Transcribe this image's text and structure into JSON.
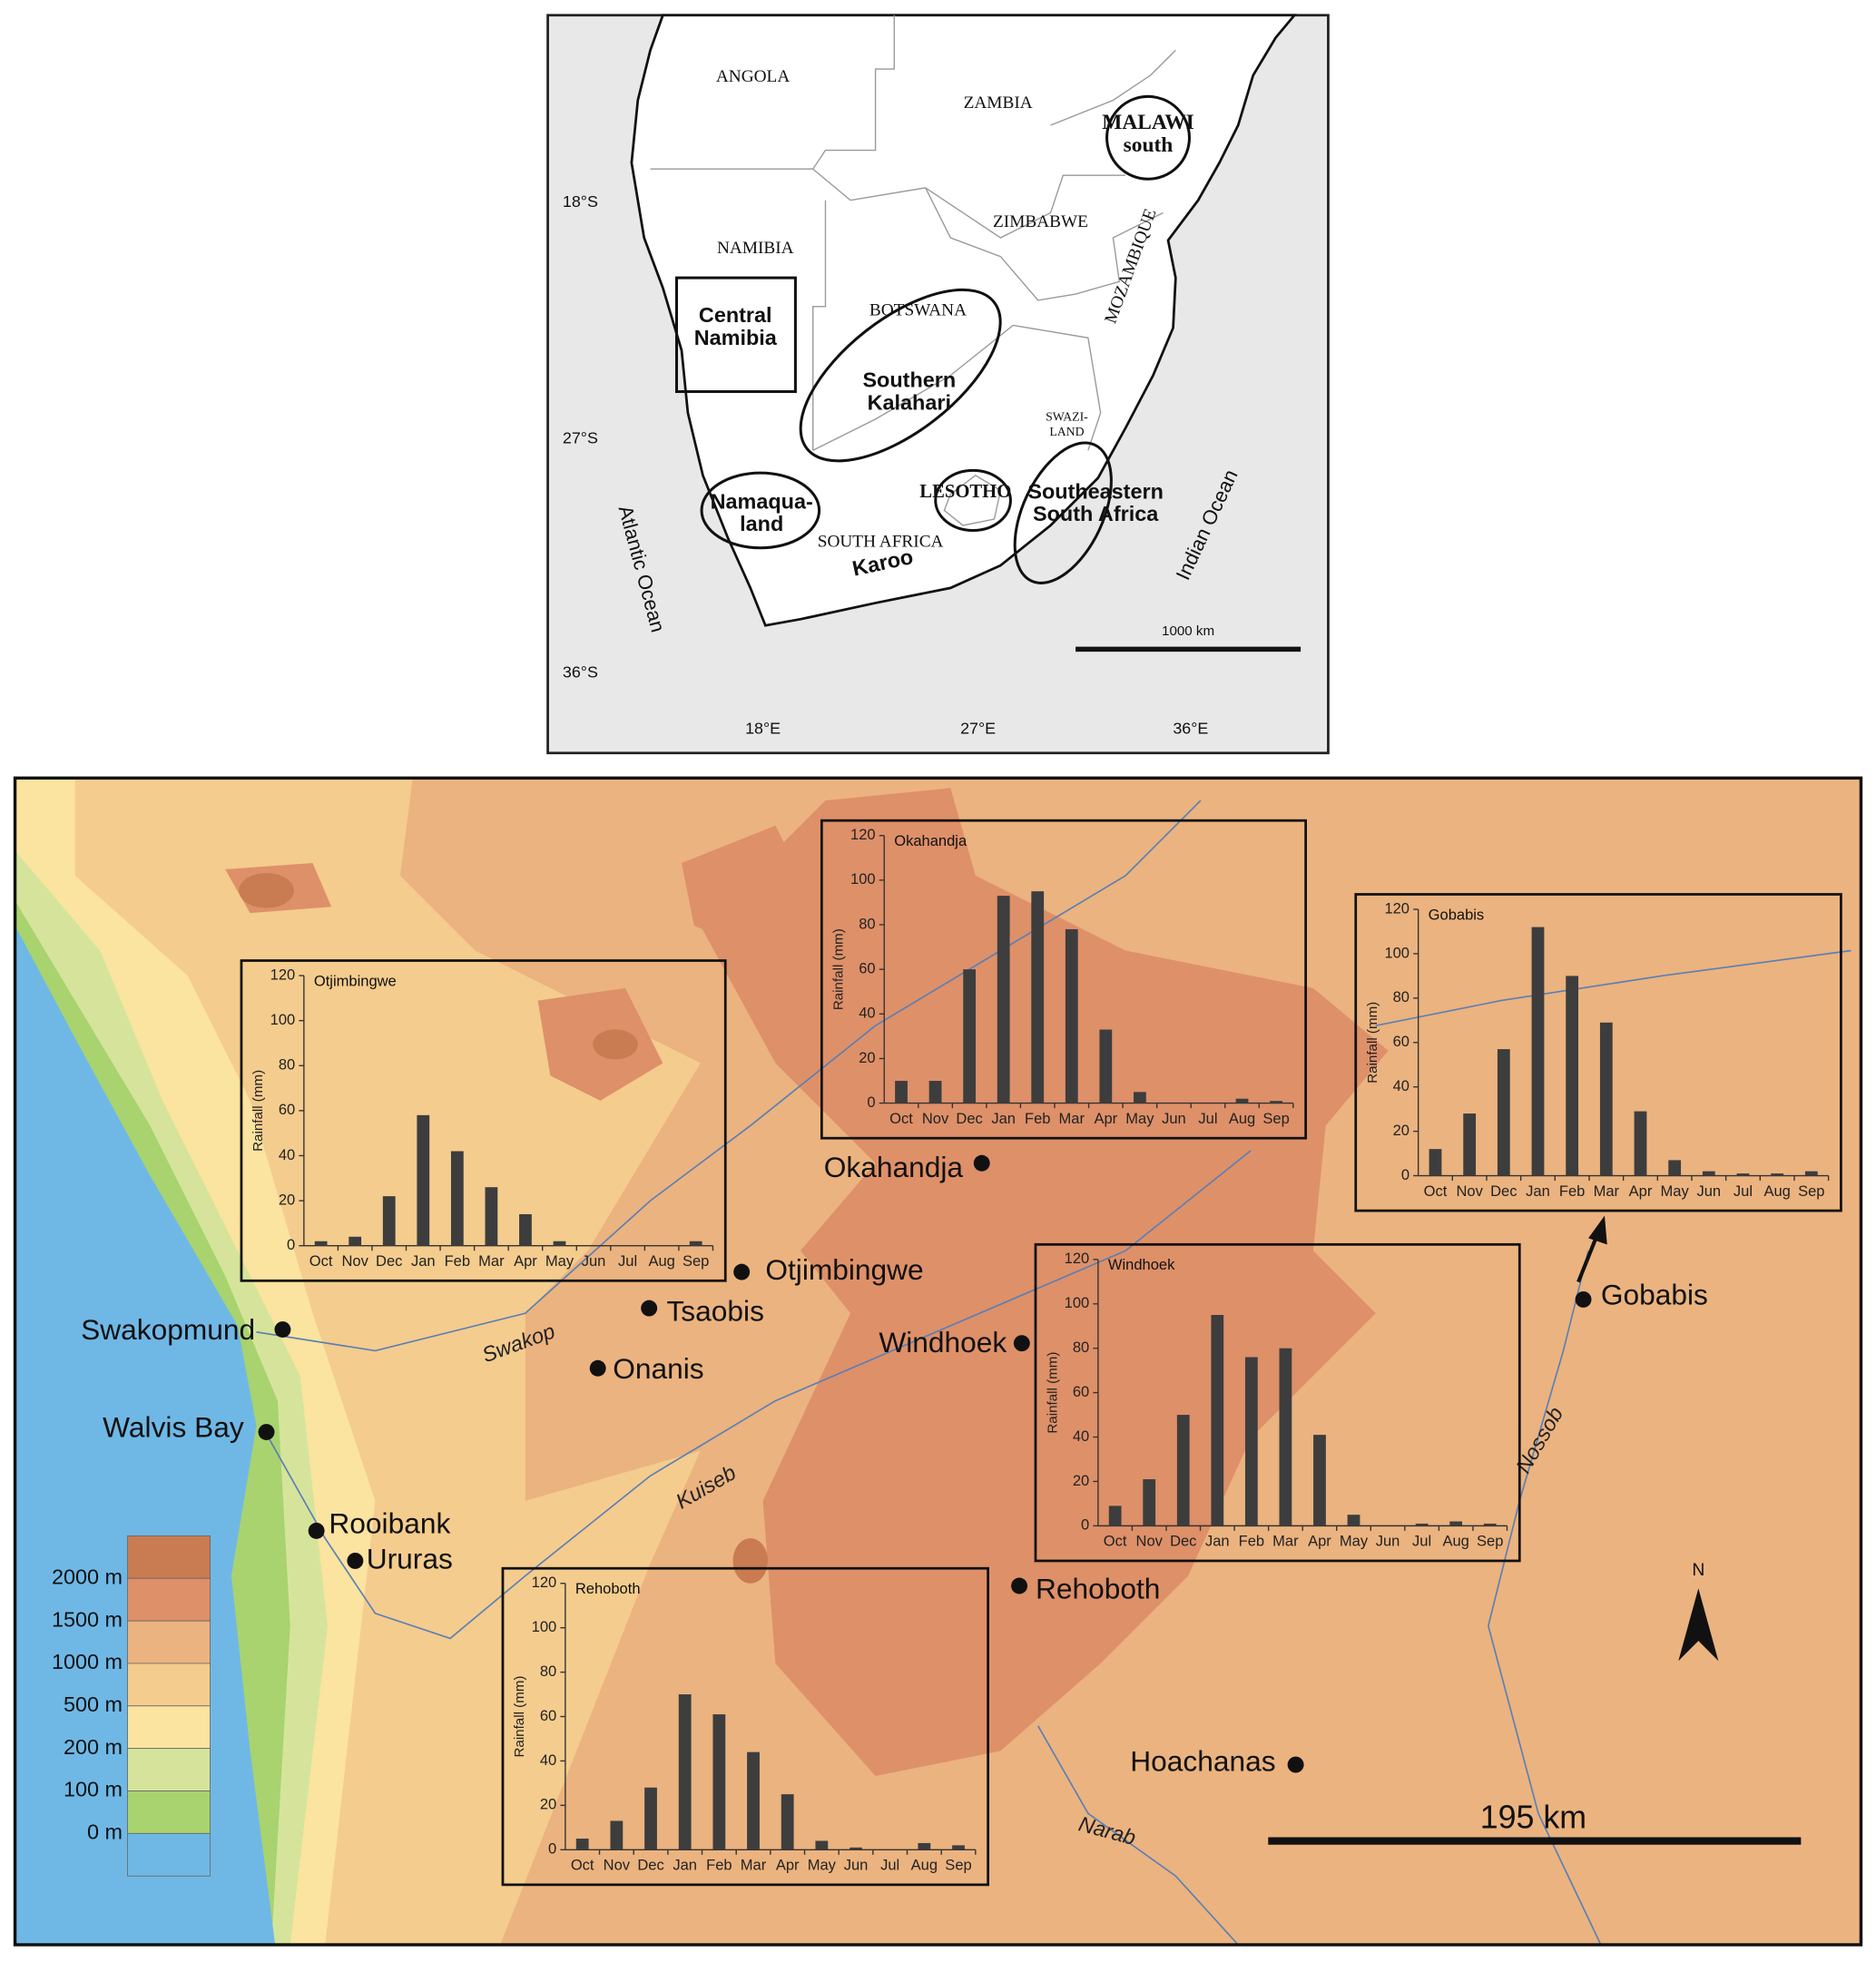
{
  "overview_map": {
    "countries": [
      "ANGOLA",
      "ZAMBIA",
      "NAMIBIA",
      "ZIMBABWE",
      "BOTSWANA",
      "MOZAMBIQUE",
      "LESOTHO",
      "SOUTH AFRICA"
    ],
    "swaziland": [
      "SWAZI-",
      "LAND"
    ],
    "regions": [
      [
        "MALAWI",
        "south"
      ],
      [
        "Central",
        "Namibia"
      ],
      [
        "Southern",
        "Kalahari"
      ],
      [
        "Namaqua-",
        "land"
      ],
      [
        "Southeastern",
        "South Africa"
      ],
      [
        "Karoo"
      ]
    ],
    "oceans": [
      "Atlantic Ocean",
      "Indian Ocean"
    ],
    "lat_labels": [
      "18°S",
      "27°S",
      "36°S"
    ],
    "lon_labels": [
      "18°E",
      "27°E",
      "36°E"
    ],
    "scale_label": "1000 km"
  },
  "detail_map": {
    "towns": [
      "Okahandja",
      "Otjimbingwe",
      "Tsaobis",
      "Swakopmund",
      "Onanis",
      "Windhoek",
      "Gobabis",
      "Walvis Bay",
      "Rooibank",
      "Ururas",
      "Rehoboth",
      "Hoachanas"
    ],
    "rivers": [
      "Swakop",
      "Kuiseb",
      "Nossob",
      "Narab"
    ],
    "legend": [
      "2000 m",
      "1500 m",
      "1000 m",
      "500 m",
      "200 m",
      "100 m",
      "0 m"
    ],
    "legend_colors": [
      "#c97b52",
      "#de9069",
      "#ebb37f",
      "#f4cc8e",
      "#fbe3a0",
      "#d6e49b",
      "#a8d36e",
      "#6fb8e6"
    ],
    "scale_label": "195 km",
    "north": "N"
  },
  "chart_data": [
    {
      "type": "bar",
      "title": "Otjimbingwe",
      "ylabel": "Rainfall (mm)",
      "color": "#3d3d3d",
      "categories": [
        "Oct",
        "Nov",
        "Dec",
        "Jan",
        "Feb",
        "Mar",
        "Apr",
        "May",
        "Jun",
        "Jul",
        "Aug",
        "Sep"
      ],
      "values": [
        2,
        4,
        22,
        58,
        42,
        26,
        14,
        2,
        0,
        0,
        0,
        2
      ],
      "ylim": [
        0,
        120
      ],
      "yticks": [
        0,
        20,
        40,
        60,
        80,
        100,
        120
      ]
    },
    {
      "type": "bar",
      "title": "Okahandja",
      "ylabel": "Rainfall (mm)",
      "color": "#3d3d3d",
      "categories": [
        "Oct",
        "Nov",
        "Dec",
        "Jan",
        "Feb",
        "Mar",
        "Apr",
        "May",
        "Jun",
        "Jul",
        "Aug",
        "Sep"
      ],
      "values": [
        10,
        10,
        60,
        93,
        95,
        78,
        33,
        5,
        0,
        0,
        2,
        1
      ],
      "ylim": [
        0,
        120
      ],
      "yticks": [
        0,
        20,
        40,
        60,
        80,
        100,
        120
      ]
    },
    {
      "type": "bar",
      "title": "Gobabis",
      "ylabel": "Rainfall (mm)",
      "color": "#3d3d3d",
      "categories": [
        "Oct",
        "Nov",
        "Dec",
        "Jan",
        "Feb",
        "Mar",
        "Apr",
        "May",
        "Jun",
        "Jul",
        "Aug",
        "Sep"
      ],
      "values": [
        12,
        28,
        57,
        112,
        90,
        69,
        29,
        7,
        2,
        1,
        1,
        2
      ],
      "ylim": [
        0,
        120
      ],
      "yticks": [
        0,
        20,
        40,
        60,
        80,
        100,
        120
      ]
    },
    {
      "type": "bar",
      "title": "Windhoek",
      "ylabel": "Rainfall (mm)",
      "color": "#3d3d3d",
      "categories": [
        "Oct",
        "Nov",
        "Dec",
        "Jan",
        "Feb",
        "Mar",
        "Apr",
        "May",
        "Jun",
        "Jul",
        "Aug",
        "Sep"
      ],
      "values": [
        9,
        21,
        50,
        95,
        76,
        80,
        41,
        5,
        0,
        1,
        2,
        1
      ],
      "ylim": [
        0,
        120
      ],
      "yticks": [
        0,
        20,
        40,
        60,
        80,
        100,
        120
      ]
    },
    {
      "type": "bar",
      "title": "Rehoboth",
      "ylabel": "Rainfall (mm)",
      "color": "#3d3d3d",
      "categories": [
        "Oct",
        "Nov",
        "Dec",
        "Jan",
        "Feb",
        "Mar",
        "Apr",
        "May",
        "Jun",
        "Jul",
        "Aug",
        "Sep"
      ],
      "values": [
        5,
        13,
        28,
        70,
        61,
        44,
        25,
        4,
        1,
        0,
        3,
        2
      ],
      "ylim": [
        0,
        120
      ],
      "yticks": [
        0,
        20,
        40,
        60,
        80,
        100,
        120
      ]
    }
  ]
}
